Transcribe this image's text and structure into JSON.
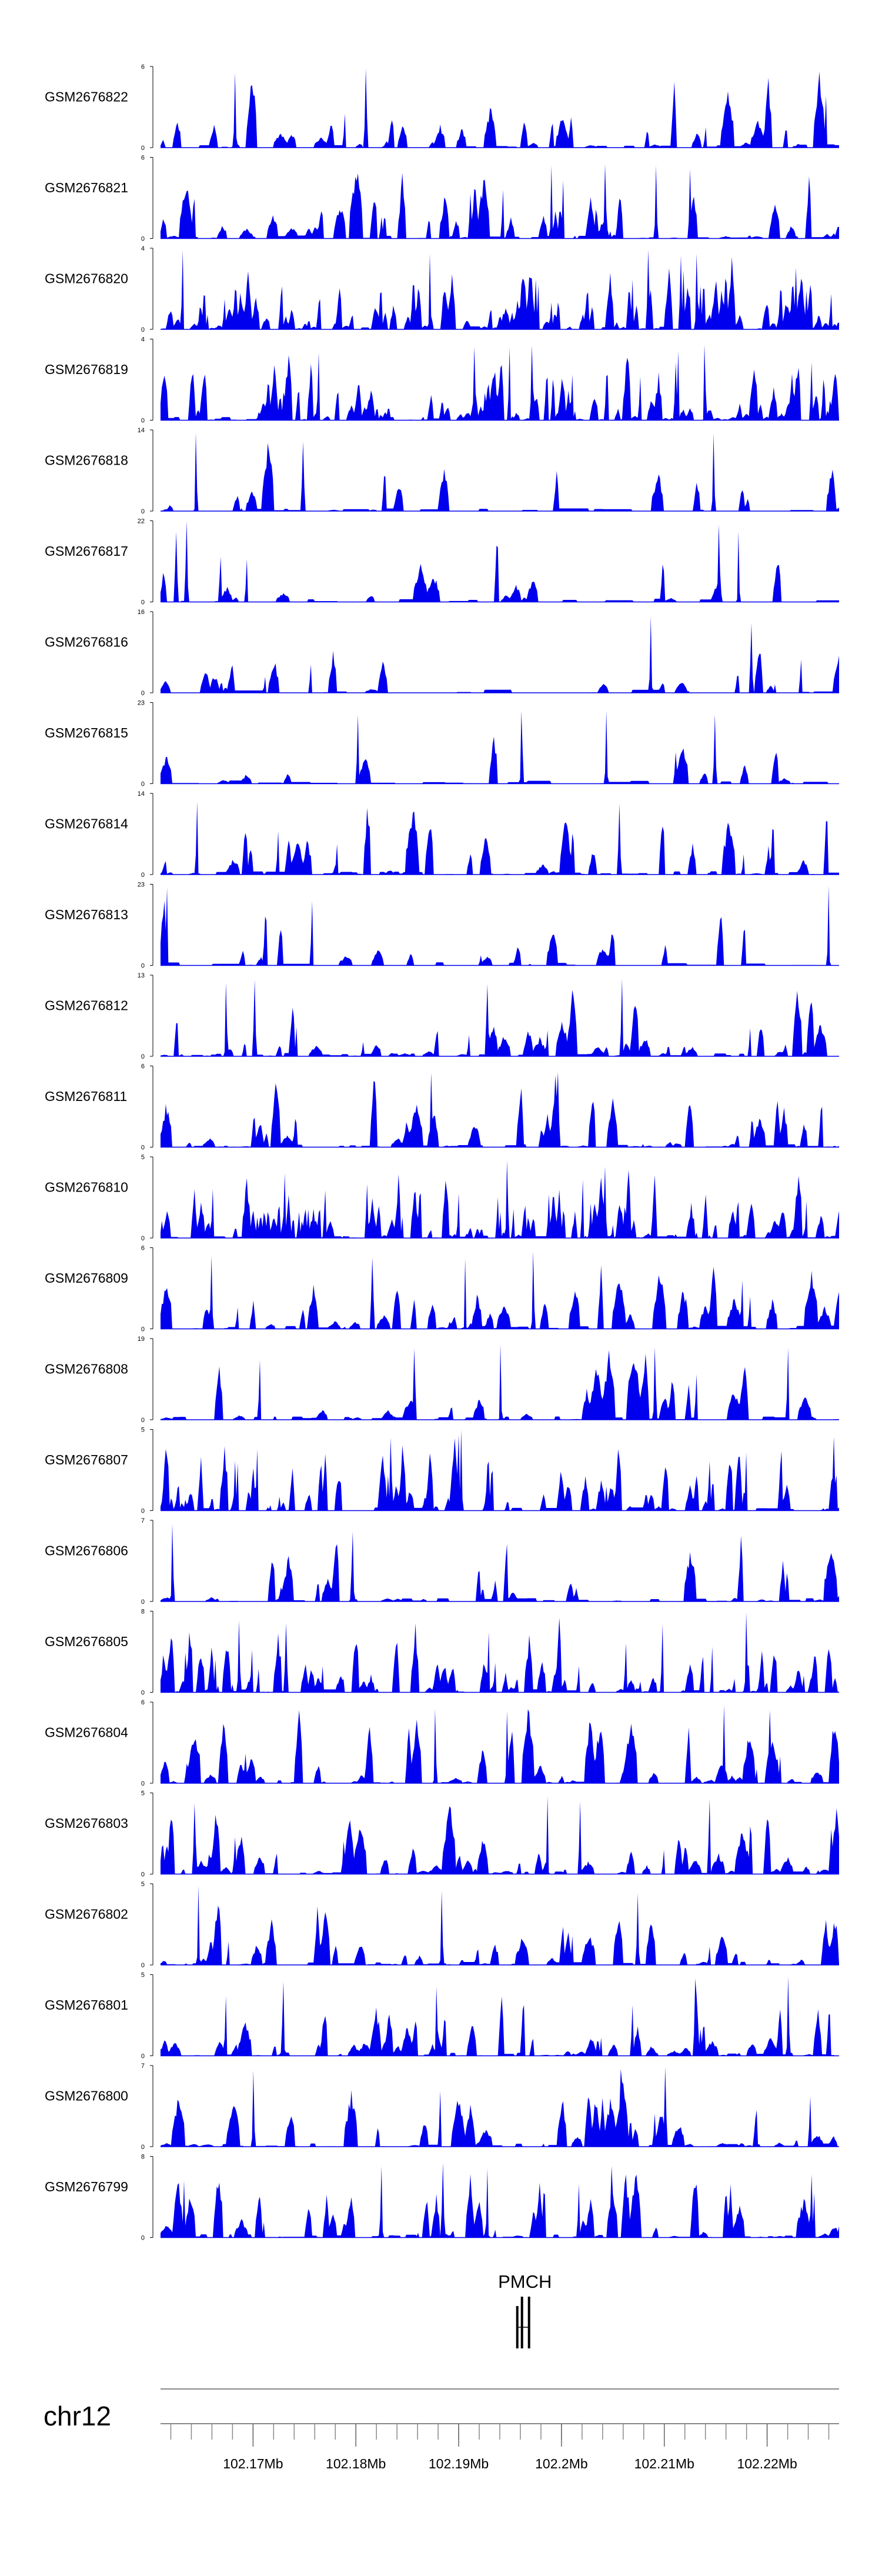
{
  "chart_data": {
    "type": "area",
    "chromosome": "chr12",
    "x_range_mb": [
      102.161,
      102.227
    ],
    "tracks": [
      {
        "name": "GSM2676822",
        "ymax": 6,
        "seed": 11,
        "density": 0.55
      },
      {
        "name": "GSM2676821",
        "ymax": 6,
        "seed": 23,
        "density": 0.55
      },
      {
        "name": "GSM2676820",
        "ymax": 4,
        "seed": 37,
        "density": 0.95
      },
      {
        "name": "GSM2676819",
        "ymax": 4,
        "seed": 41,
        "density": 0.9
      },
      {
        "name": "GSM2676818",
        "ymax": 14,
        "seed": 53,
        "density": 0.35
      },
      {
        "name": "GSM2676817",
        "ymax": 22,
        "seed": 67,
        "density": 0.35
      },
      {
        "name": "GSM2676816",
        "ymax": 16,
        "seed": 71,
        "density": 0.35
      },
      {
        "name": "GSM2676815",
        "ymax": 23,
        "seed": 83,
        "density": 0.3
      },
      {
        "name": "GSM2676814",
        "ymax": 14,
        "seed": 97,
        "density": 0.4
      },
      {
        "name": "GSM2676813",
        "ymax": 23,
        "seed": 101,
        "density": 0.3
      },
      {
        "name": "GSM2676812",
        "ymax": 13,
        "seed": 113,
        "density": 0.55
      },
      {
        "name": "GSM2676811",
        "ymax": 6,
        "seed": 127,
        "density": 0.55
      },
      {
        "name": "GSM2676810",
        "ymax": 5,
        "seed": 131,
        "density": 0.8
      },
      {
        "name": "GSM2676809",
        "ymax": 6,
        "seed": 149,
        "density": 0.55
      },
      {
        "name": "GSM2676808",
        "ymax": 19,
        "seed": 151,
        "density": 0.4
      },
      {
        "name": "GSM2676807",
        "ymax": 5,
        "seed": 163,
        "density": 0.75
      },
      {
        "name": "GSM2676806",
        "ymax": 7,
        "seed": 173,
        "density": 0.45
      },
      {
        "name": "GSM2676805",
        "ymax": 8,
        "seed": 181,
        "density": 0.7
      },
      {
        "name": "GSM2676804",
        "ymax": 6,
        "seed": 191,
        "density": 0.6
      },
      {
        "name": "GSM2676803",
        "ymax": 5,
        "seed": 197,
        "density": 0.6
      },
      {
        "name": "GSM2676802",
        "ymax": 5,
        "seed": 211,
        "density": 0.5
      },
      {
        "name": "GSM2676801",
        "ymax": 5,
        "seed": 223,
        "density": 0.6
      },
      {
        "name": "GSM2676800",
        "ymax": 7,
        "seed": 227,
        "density": 0.5
      },
      {
        "name": "GSM2676799",
        "ymax": 8,
        "seed": 239,
        "density": 0.55
      }
    ],
    "y_min": 0,
    "fill_color": "#0000ee",
    "gene": {
      "name": "PMCH",
      "start_mb": 102.1957,
      "end_mb": 102.1965
    },
    "x_axis": {
      "tick_labels": [
        "102.17Mb",
        "102.18Mb",
        "102.19Mb",
        "102.2Mb",
        "102.21Mb",
        "102.22Mb"
      ],
      "tick_values_mb": [
        102.17,
        102.18,
        102.19,
        102.2,
        102.21,
        102.22
      ],
      "minor_tick_step_mb": 0.002
    }
  }
}
